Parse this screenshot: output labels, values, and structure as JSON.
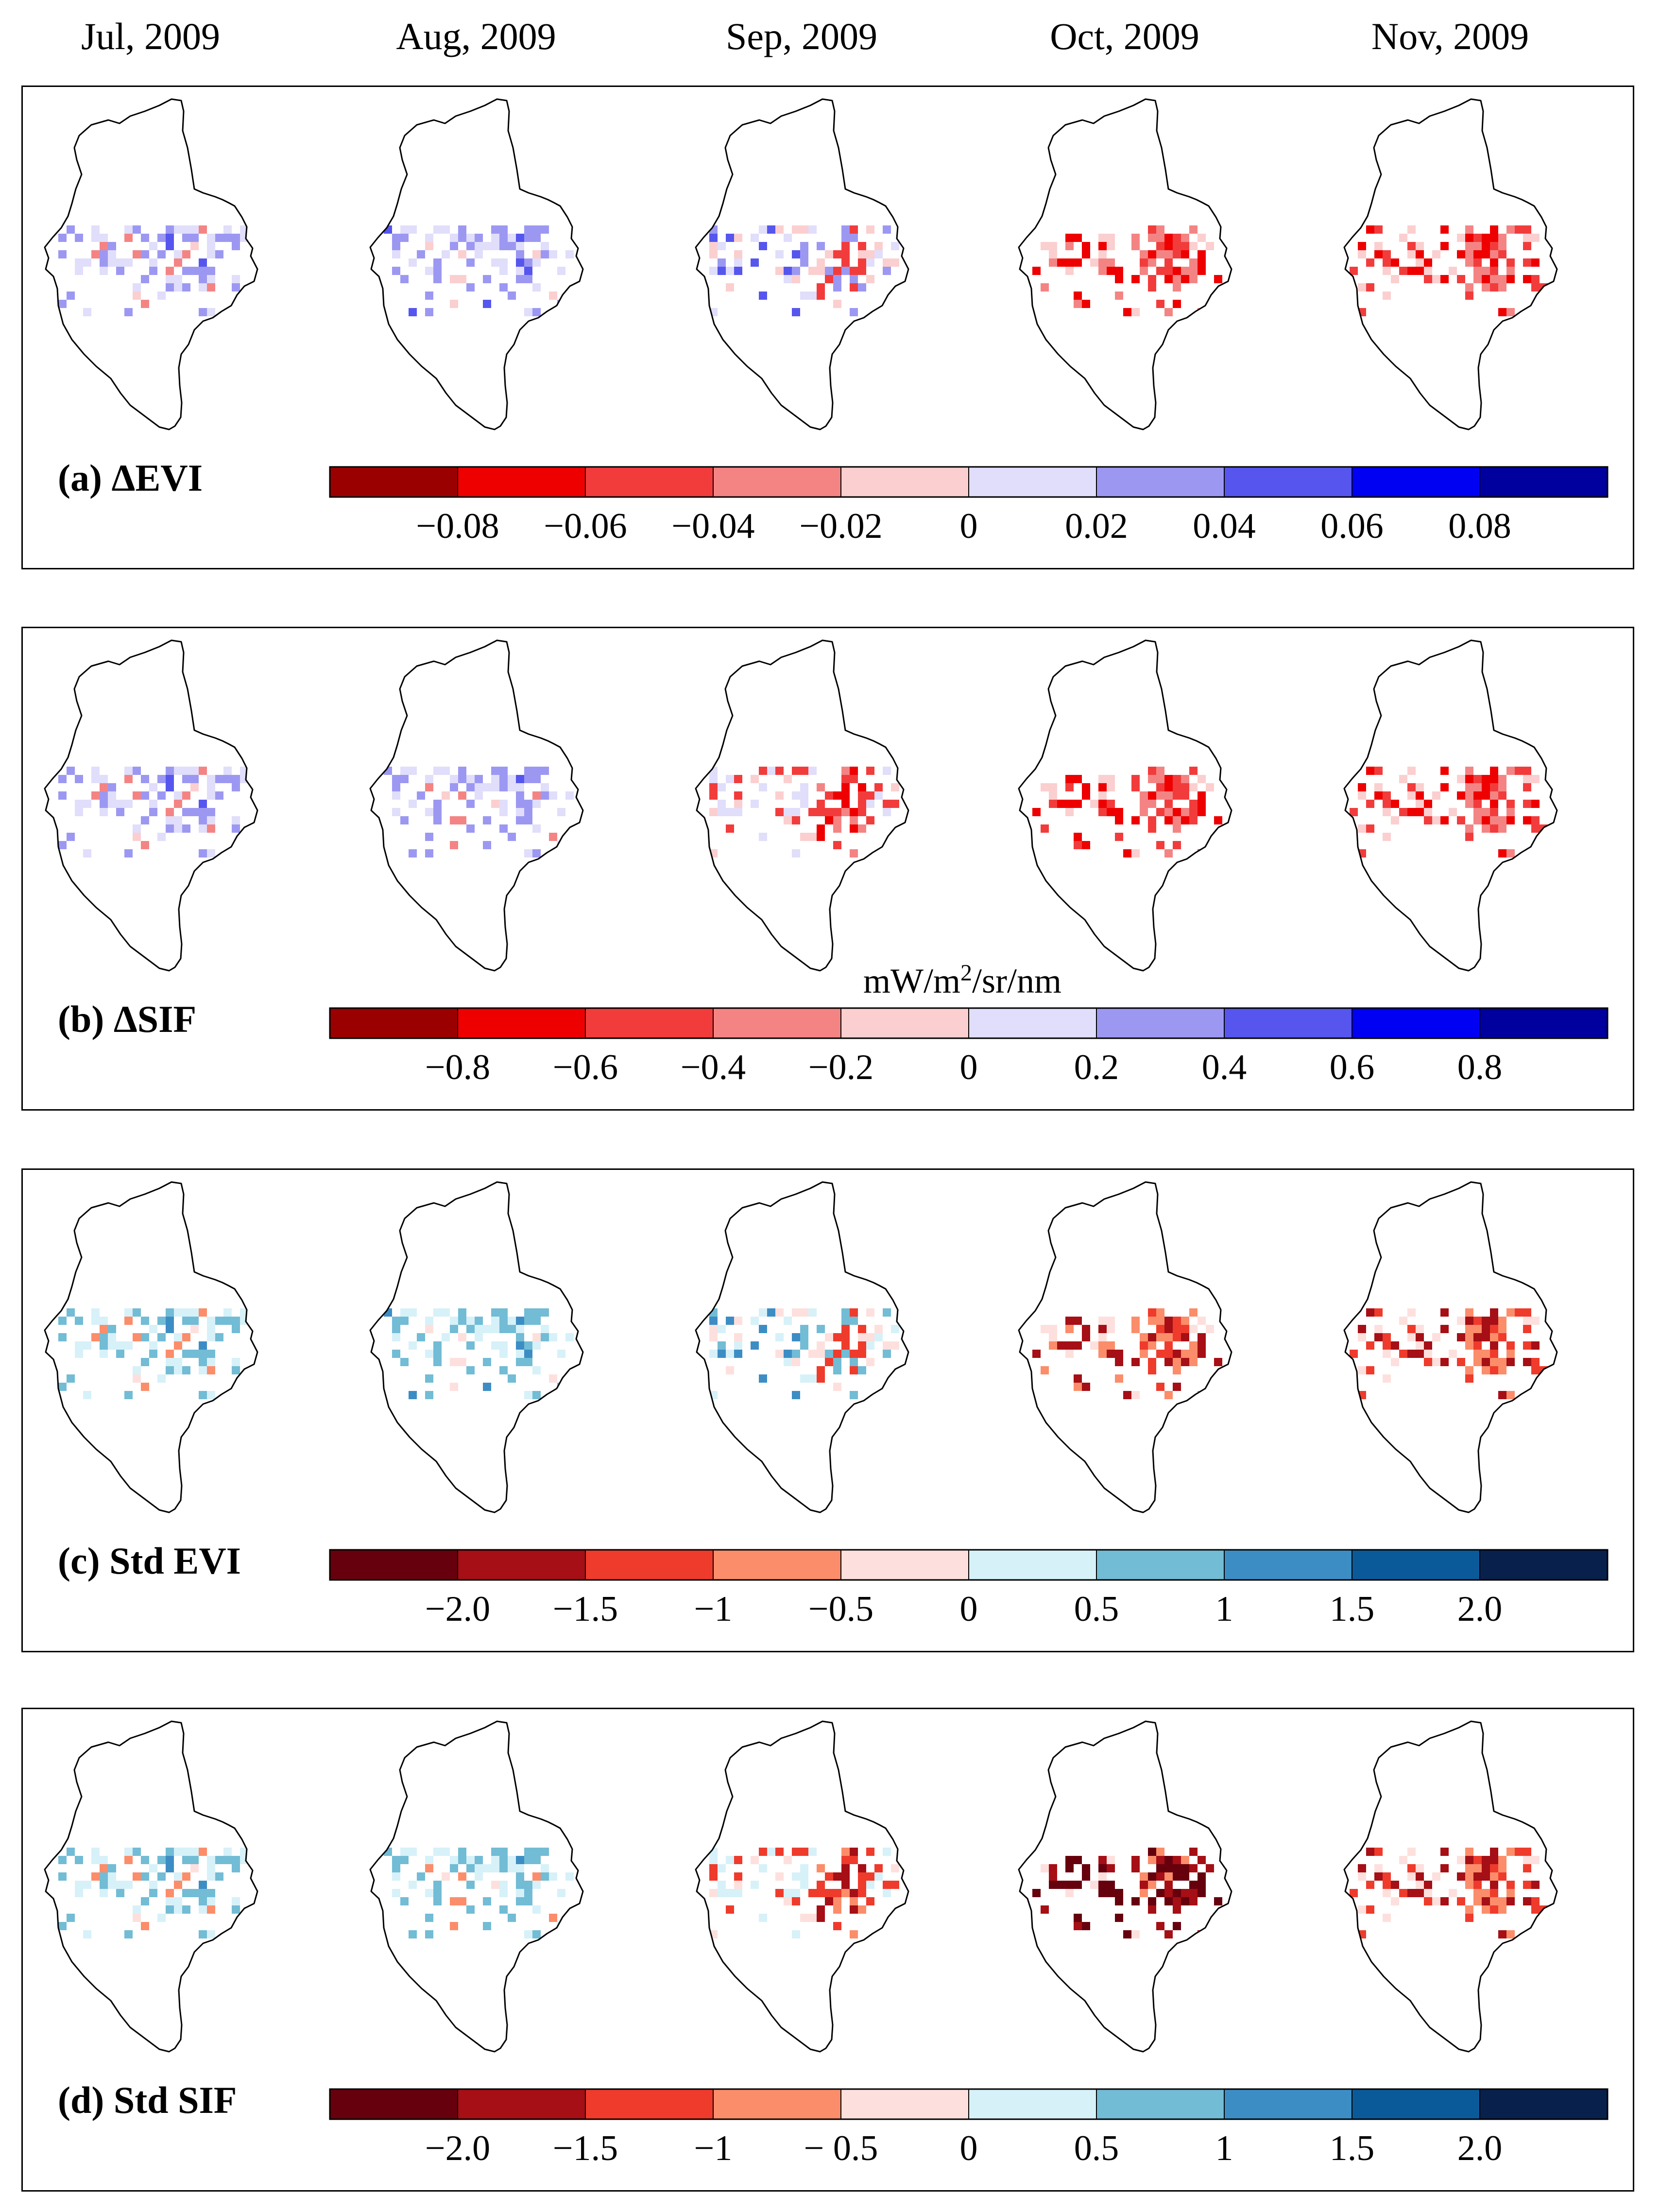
{
  "months": [
    "Jul, 2009",
    "Aug, 2009",
    "Sep, 2009",
    "Oct, 2009",
    "Nov, 2009"
  ],
  "chart_data": [
    {
      "type": "heatmap",
      "label": "(a) ΔEVI",
      "unit": "",
      "colormap": "red-white-blue",
      "colors": [
        "#9b0000",
        "#ee0000",
        "#f23c3c",
        "#f48484",
        "#fbcfcf",
        "#e0defa",
        "#9c98f2",
        "#5656ee",
        "#0000f2",
        "#00009e"
      ],
      "ticks": [
        "−0.08",
        "−0.06",
        "−0.04",
        "−0.02",
        "0",
        "0.02",
        "0.04",
        "0.06",
        "0.08"
      ],
      "month_pattern": [
        1,
        2,
        3,
        5,
        6
      ]
    },
    {
      "type": "heatmap",
      "label": "(b) ΔSIF",
      "unit": "mW/m²/sr/nm",
      "unit_base": "mW/m",
      "unit_sup": "2",
      "unit_tail": "/sr/nm",
      "colormap": "red-white-blue",
      "colors": [
        "#9b0000",
        "#ee0000",
        "#f23c3c",
        "#f48484",
        "#fbcfcf",
        "#e0defa",
        "#9c98f2",
        "#5656ee",
        "#0000f2",
        "#00009e"
      ],
      "ticks": [
        "−0.8",
        "−0.6",
        "−0.4",
        "−0.2",
        "0",
        "0.2",
        "0.4",
        "0.6",
        "0.8"
      ],
      "month_pattern": [
        1,
        1,
        4,
        6,
        6
      ]
    },
    {
      "type": "heatmap",
      "label": "(c) Std EVI",
      "unit": "",
      "colormap": "red-white-blue (RdBu)",
      "colors": [
        "#67000d",
        "#a50f15",
        "#ef3b2c",
        "#fc8d6a",
        "#fde0dd",
        "#d7f1f9",
        "#72bcd5",
        "#3d8dc5",
        "#0a5a9a",
        "#08204c"
      ],
      "ticks": [
        "−2.0",
        "−1.5",
        "−1",
        "−0.5",
        "0",
        "0.5",
        "1",
        "1.5",
        "2.0"
      ],
      "month_pattern": [
        1,
        2,
        3,
        5,
        6
      ]
    },
    {
      "type": "heatmap",
      "label": "(d) Std SIF",
      "unit": "",
      "colormap": "red-white-blue (RdBu)",
      "colors": [
        "#67000d",
        "#a50f15",
        "#ef3b2c",
        "#fc8d6a",
        "#fde0dd",
        "#d7f1f9",
        "#72bcd5",
        "#3d8dc5",
        "#0a5a9a",
        "#08204c"
      ],
      "ticks": [
        "−2.0",
        "−1.5",
        "−1",
        "− 0.5",
        "0",
        "0.5",
        "1",
        "1.5",
        "2.0"
      ],
      "month_pattern": [
        1,
        1,
        4,
        7,
        6
      ]
    }
  ]
}
